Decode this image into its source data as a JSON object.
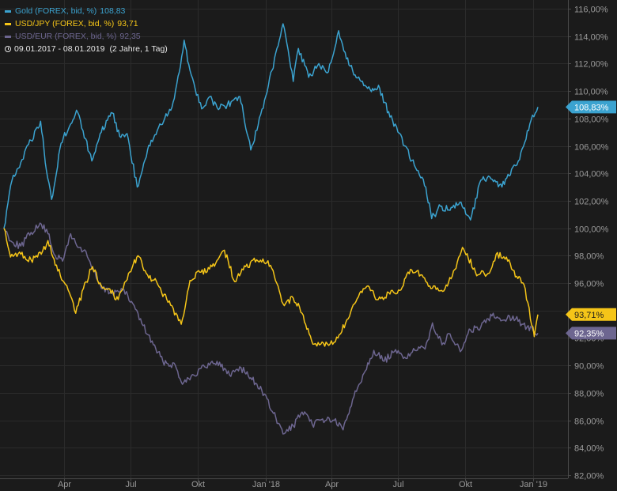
{
  "legend": [
    {
      "label": "Gold (FOREX, bid, %)",
      "last": "108,83",
      "color": "#3ba3d0"
    },
    {
      "label": "USD/JPY (FOREX, bid, %)",
      "last": "93,71",
      "color": "#f5c518"
    },
    {
      "label": "USD/EUR (FOREX, bid, %)",
      "last": "92,35",
      "color": "#6d6690"
    }
  ],
  "range": {
    "dates": "09.01.2017 - 08.01.2019",
    "span": "(2 Jahre, 1 Tag)",
    "icon": "clock-icon"
  },
  "chart_data": {
    "type": "line",
    "xlabel": "",
    "ylabel": "",
    "grid": true,
    "legend_position": "top-left",
    "x_ticks": [
      "Apr",
      "Jul",
      "Okt",
      "Jan '18",
      "Apr",
      "Jul",
      "Okt",
      "Jan '19"
    ],
    "x_tick_dates": [
      "2017-04-01",
      "2017-07-01",
      "2017-10-01",
      "2018-01-01",
      "2018-04-01",
      "2018-07-01",
      "2018-10-01",
      "2019-01-01"
    ],
    "x_range": [
      "2017-01-09",
      "2019-01-08"
    ],
    "y_ticks": [
      "82,00%",
      "84,00%",
      "86,00%",
      "88,00%",
      "90,00%",
      "92,00%",
      "94,00%",
      "96,00%",
      "98,00%",
      "100,00%",
      "102,00%",
      "104,00%",
      "106,00%",
      "108,00%",
      "110,00%",
      "112,00%",
      "114,00%",
      "116,00%"
    ],
    "ylim": [
      82,
      116
    ],
    "series": [
      {
        "name": "Gold (FOREX, bid, %)",
        "color": "#3ba3d0",
        "last_label": "108,83%",
        "points": [
          [
            "2017-01-09",
            100.0
          ],
          [
            "2017-01-20",
            103.5
          ],
          [
            "2017-02-01",
            104.8
          ],
          [
            "2017-02-15",
            106.4
          ],
          [
            "2017-02-28",
            107.8
          ],
          [
            "2017-03-08",
            104.2
          ],
          [
            "2017-03-15",
            102.1
          ],
          [
            "2017-03-28",
            106.2
          ],
          [
            "2017-04-10",
            107.6
          ],
          [
            "2017-04-18",
            108.6
          ],
          [
            "2017-04-27",
            107.1
          ],
          [
            "2017-05-09",
            104.9
          ],
          [
            "2017-05-22",
            107.0
          ],
          [
            "2017-06-06",
            108.4
          ],
          [
            "2017-06-16",
            106.7
          ],
          [
            "2017-06-26",
            106.9
          ],
          [
            "2017-07-10",
            103.0
          ],
          [
            "2017-07-24",
            105.7
          ],
          [
            "2017-08-03",
            106.8
          ],
          [
            "2017-08-15",
            107.8
          ],
          [
            "2017-08-28",
            109.2
          ],
          [
            "2017-09-07",
            111.8
          ],
          [
            "2017-09-12",
            113.7
          ],
          [
            "2017-09-20",
            111.5
          ],
          [
            "2017-10-06",
            108.7
          ],
          [
            "2017-10-17",
            109.6
          ],
          [
            "2017-10-27",
            108.8
          ],
          [
            "2017-11-10",
            109.0
          ],
          [
            "2017-11-27",
            109.6
          ],
          [
            "2017-12-12",
            105.7
          ],
          [
            "2017-12-22",
            107.5
          ],
          [
            "2018-01-05",
            110.4
          ],
          [
            "2018-01-25",
            114.9
          ],
          [
            "2018-02-08",
            110.7
          ],
          [
            "2018-02-15",
            113.1
          ],
          [
            "2018-03-01",
            111.0
          ],
          [
            "2018-03-15",
            112.0
          ],
          [
            "2018-03-28",
            111.4
          ],
          [
            "2018-04-11",
            114.4
          ],
          [
            "2018-04-25",
            111.9
          ],
          [
            "2018-05-10",
            110.8
          ],
          [
            "2018-05-24",
            110.1
          ],
          [
            "2018-06-06",
            110.2
          ],
          [
            "2018-06-20",
            108.1
          ],
          [
            "2018-06-29",
            107.4
          ],
          [
            "2018-07-10",
            106.0
          ],
          [
            "2018-07-25",
            104.4
          ],
          [
            "2018-08-08",
            103.0
          ],
          [
            "2018-08-16",
            100.7
          ],
          [
            "2018-08-28",
            101.6
          ],
          [
            "2018-09-10",
            101.3
          ],
          [
            "2018-09-25",
            101.9
          ],
          [
            "2018-10-08",
            100.6
          ],
          [
            "2018-10-22",
            103.5
          ],
          [
            "2018-11-05",
            103.6
          ],
          [
            "2018-11-20",
            103.0
          ],
          [
            "2018-12-03",
            104.3
          ],
          [
            "2018-12-14",
            105.0
          ],
          [
            "2018-12-28",
            107.6
          ],
          [
            "2019-01-08",
            108.83
          ]
        ]
      },
      {
        "name": "USD/JPY (FOREX, bid, %)",
        "color": "#f5c518",
        "last_label": "93,71%",
        "points": [
          [
            "2017-01-09",
            100.0
          ],
          [
            "2017-01-18",
            97.9
          ],
          [
            "2017-02-01",
            98.1
          ],
          [
            "2017-02-15",
            97.7
          ],
          [
            "2017-03-01",
            98.1
          ],
          [
            "2017-03-10",
            99.1
          ],
          [
            "2017-03-20",
            97.3
          ],
          [
            "2017-04-03",
            95.9
          ],
          [
            "2017-04-17",
            93.8
          ],
          [
            "2017-05-01",
            96.1
          ],
          [
            "2017-05-10",
            97.2
          ],
          [
            "2017-05-22",
            95.8
          ],
          [
            "2017-06-01",
            95.6
          ],
          [
            "2017-06-14",
            94.8
          ],
          [
            "2017-06-28",
            96.7
          ],
          [
            "2017-07-11",
            98.0
          ],
          [
            "2017-07-24",
            96.6
          ],
          [
            "2017-08-07",
            95.9
          ],
          [
            "2017-08-21",
            94.6
          ],
          [
            "2017-09-08",
            93.0
          ],
          [
            "2017-09-20",
            96.2
          ],
          [
            "2017-10-05",
            96.8
          ],
          [
            "2017-10-20",
            97.2
          ],
          [
            "2017-11-06",
            98.4
          ],
          [
            "2017-11-20",
            96.1
          ],
          [
            "2017-12-05",
            97.2
          ],
          [
            "2017-12-20",
            97.7
          ],
          [
            "2018-01-08",
            97.3
          ],
          [
            "2018-01-25",
            94.5
          ],
          [
            "2018-02-08",
            94.9
          ],
          [
            "2018-02-20",
            93.8
          ],
          [
            "2018-03-05",
            91.8
          ],
          [
            "2018-03-23",
            91.4
          ],
          [
            "2018-04-10",
            92.0
          ],
          [
            "2018-04-24",
            93.4
          ],
          [
            "2018-05-08",
            95.0
          ],
          [
            "2018-05-21",
            95.8
          ],
          [
            "2018-06-04",
            94.8
          ],
          [
            "2018-06-20",
            95.2
          ],
          [
            "2018-07-05",
            95.5
          ],
          [
            "2018-07-18",
            97.0
          ],
          [
            "2018-08-01",
            96.6
          ],
          [
            "2018-08-15",
            95.6
          ],
          [
            "2018-08-31",
            95.4
          ],
          [
            "2018-09-13",
            96.5
          ],
          [
            "2018-09-27",
            98.6
          ],
          [
            "2018-10-05",
            97.8
          ],
          [
            "2018-10-18",
            96.6
          ],
          [
            "2018-11-01",
            96.7
          ],
          [
            "2018-11-12",
            98.1
          ],
          [
            "2018-11-26",
            97.9
          ],
          [
            "2018-12-10",
            96.5
          ],
          [
            "2018-12-20",
            95.9
          ],
          [
            "2019-01-03",
            92.1
          ],
          [
            "2019-01-08",
            93.71
          ]
        ]
      },
      {
        "name": "USD/EUR (FOREX, bid, %)",
        "color": "#6d6690",
        "last_label": "92,35%",
        "points": [
          [
            "2017-01-09",
            100.0
          ],
          [
            "2017-01-20",
            99.0
          ],
          [
            "2017-02-01",
            98.7
          ],
          [
            "2017-02-15",
            99.7
          ],
          [
            "2017-03-01",
            100.3
          ],
          [
            "2017-03-10",
            99.6
          ],
          [
            "2017-03-20",
            98.0
          ],
          [
            "2017-03-30",
            97.6
          ],
          [
            "2017-04-10",
            99.6
          ],
          [
            "2017-04-20",
            98.6
          ],
          [
            "2017-05-01",
            98.3
          ],
          [
            "2017-05-10",
            97.0
          ],
          [
            "2017-05-22",
            95.6
          ],
          [
            "2017-06-06",
            95.3
          ],
          [
            "2017-06-20",
            95.5
          ],
          [
            "2017-07-04",
            94.5
          ],
          [
            "2017-07-18",
            92.9
          ],
          [
            "2017-08-01",
            91.5
          ],
          [
            "2017-08-14",
            90.3
          ],
          [
            "2017-08-31",
            90.0
          ],
          [
            "2017-09-08",
            88.8
          ],
          [
            "2017-09-25",
            89.3
          ],
          [
            "2017-10-10",
            89.9
          ],
          [
            "2017-10-27",
            90.3
          ],
          [
            "2017-11-13",
            89.3
          ],
          [
            "2017-11-27",
            89.9
          ],
          [
            "2017-12-12",
            89.1
          ],
          [
            "2017-12-27",
            88.2
          ],
          [
            "2018-01-12",
            86.5
          ],
          [
            "2018-01-25",
            85.0
          ],
          [
            "2018-02-08",
            85.6
          ],
          [
            "2018-02-20",
            86.6
          ],
          [
            "2018-03-06",
            85.7
          ],
          [
            "2018-03-20",
            86.1
          ],
          [
            "2018-04-05",
            86.0
          ],
          [
            "2018-04-17",
            85.3
          ],
          [
            "2018-04-30",
            87.5
          ],
          [
            "2018-05-14",
            89.3
          ],
          [
            "2018-05-29",
            91.1
          ],
          [
            "2018-06-12",
            90.3
          ],
          [
            "2018-06-26",
            91.0
          ],
          [
            "2018-07-10",
            90.6
          ],
          [
            "2018-07-24",
            91.1
          ],
          [
            "2018-08-07",
            91.2
          ],
          [
            "2018-08-17",
            93.1
          ],
          [
            "2018-08-30",
            91.5
          ],
          [
            "2018-09-10",
            92.3
          ],
          [
            "2018-09-24",
            91.0
          ],
          [
            "2018-10-08",
            92.6
          ],
          [
            "2018-10-22",
            92.8
          ],
          [
            "2018-11-08",
            93.8
          ],
          [
            "2018-11-22",
            93.3
          ],
          [
            "2018-12-05",
            93.6
          ],
          [
            "2018-12-19",
            93.0
          ],
          [
            "2019-01-03",
            92.4
          ],
          [
            "2019-01-08",
            92.35
          ]
        ]
      }
    ]
  }
}
